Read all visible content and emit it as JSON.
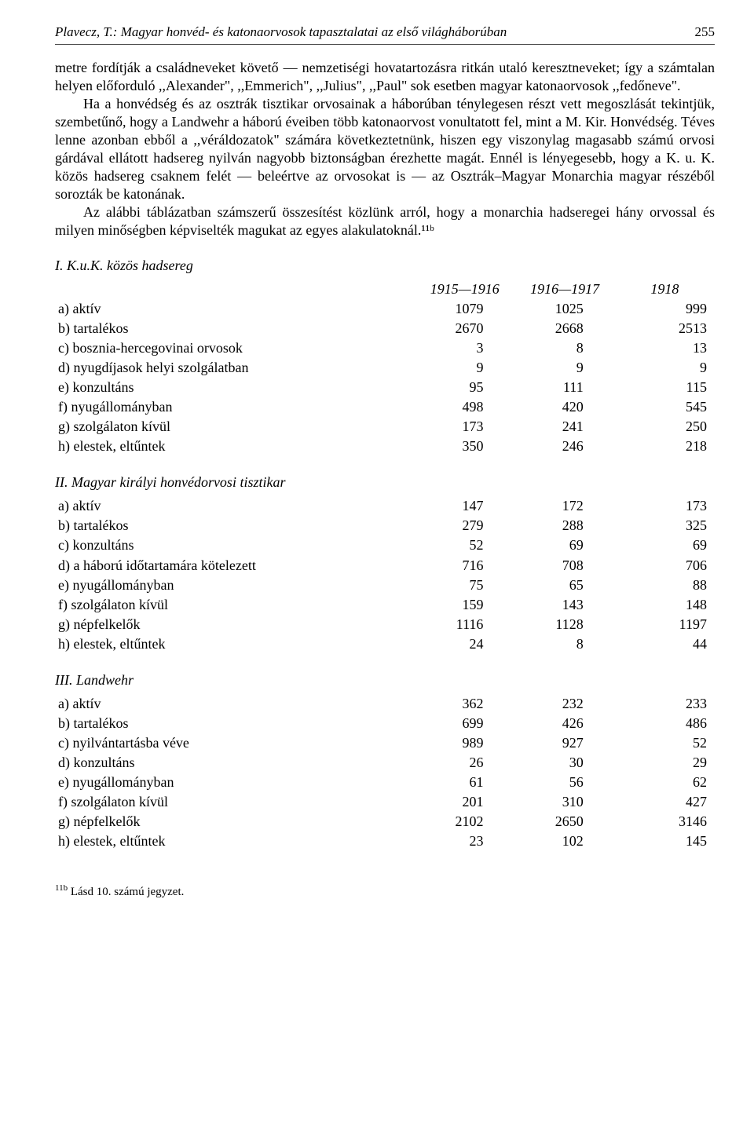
{
  "header": {
    "running_title": "Plavecz, T.: Magyar honvéd- és katonaorvosok tapasztalatai az első világháborúban",
    "page_number": "255"
  },
  "paragraphs": {
    "p1": "metre fordítják a családneveket követő — nemzetiségi hovatartozásra ritkán utaló keresztneveket; így a számtalan helyen előforduló ,,Alexander\", ,,Emmerich\", ,,Julius\", ,,Paul\" sok esetben magyar katonaorvosok ,,fedőneve\".",
    "p2": "Ha a honvédség és az osztrák tisztikar orvosainak a háborúban ténylegesen részt vett megoszlását tekintjük, szembetűnő, hogy a Landwehr a háború éveiben több katonaorvost vonultatott fel, mint a M. Kir. Honvédség. Téves lenne azonban ebből a ,,véráldozatok\" számára következtetnünk, hiszen egy viszonylag magasabb számú orvosi gárdával ellátott hadsereg nyilván nagyobb biztonságban érezhette magát. Ennél is lényegesebb, hogy a K. u. K. közös hadsereg csaknem felét — beleértve az orvosokat is — az Osztrák–Magyar Monarchia magyar részéből sorozták be katonának.",
    "p3": "Az alábbi táblázatban számszerű összesítést közlünk arról, hogy a monarchia hadseregei hány orvossal és milyen minőségben képviselték magukat az egyes alakulatoknál.¹¹ᵇ"
  },
  "tables": {
    "periods": {
      "c1": "1915—1916",
      "c2": "1916—1917",
      "c3": "1918"
    },
    "section1": {
      "title": "I.  K.u.K.  közös hadsereg",
      "rows": [
        {
          "label": "a) aktív",
          "c1": "1079",
          "c2": "1025",
          "c3": "999"
        },
        {
          "label": "b) tartalékos",
          "c1": "2670",
          "c2": "2668",
          "c3": "2513"
        },
        {
          "label": "c) bosznia-hercegovinai orvosok",
          "c1": "3",
          "c2": "8",
          "c3": "13"
        },
        {
          "label": "d) nyugdíjasok helyi szolgálatban",
          "c1": "9",
          "c2": "9",
          "c3": "9"
        },
        {
          "label": "e) konzultáns",
          "c1": "95",
          "c2": "111",
          "c3": "115"
        },
        {
          "label": "f) nyugállományban",
          "c1": "498",
          "c2": "420",
          "c3": "545"
        },
        {
          "label": "g) szolgálaton kívül",
          "c1": "173",
          "c2": "241",
          "c3": "250"
        },
        {
          "label": "h) elestek, eltűntek",
          "c1": "350",
          "c2": "246",
          "c3": "218"
        }
      ]
    },
    "section2": {
      "title": "II.  Magyar királyi honvédorvosi tisztikar",
      "rows": [
        {
          "label": "a) aktív",
          "c1": "147",
          "c2": "172",
          "c3": "173"
        },
        {
          "label": "b) tartalékos",
          "c1": "279",
          "c2": "288",
          "c3": "325"
        },
        {
          "label": "c) konzultáns",
          "c1": "52",
          "c2": "69",
          "c3": "69"
        },
        {
          "label": "d) a háború időtartamára kötelezett",
          "c1": "716",
          "c2": "708",
          "c3": "706"
        },
        {
          "label": "e) nyugállományban",
          "c1": "75",
          "c2": "65",
          "c3": "88"
        },
        {
          "label": "f) szolgálaton kívül",
          "c1": "159",
          "c2": "143",
          "c3": "148"
        },
        {
          "label": "g) népfelkelők",
          "c1": "1116",
          "c2": "1128",
          "c3": "1197"
        },
        {
          "label": "h) elestek, eltűntek",
          "c1": "24",
          "c2": "8",
          "c3": "44"
        }
      ]
    },
    "section3": {
      "title": "III.  Landwehr",
      "rows": [
        {
          "label": "a) aktív",
          "c1": "362",
          "c2": "232",
          "c3": "233"
        },
        {
          "label": "b) tartalékos",
          "c1": "699",
          "c2": "426",
          "c3": "486"
        },
        {
          "label": "c) nyilvántartásba véve",
          "c1": "989",
          "c2": "927",
          "c3": "52"
        },
        {
          "label": "d) konzultáns",
          "c1": "26",
          "c2": "30",
          "c3": "29"
        },
        {
          "label": "e) nyugállományban",
          "c1": "61",
          "c2": "56",
          "c3": "62"
        },
        {
          "label": "f) szolgálaton kívül",
          "c1": "201",
          "c2": "310",
          "c3": "427"
        },
        {
          "label": "g) népfelkelők",
          "c1": "2102",
          "c2": "2650",
          "c3": "3146"
        },
        {
          "label": "h) elestek, eltűntek",
          "c1": "23",
          "c2": "102",
          "c3": "145"
        }
      ]
    }
  },
  "footnote": {
    "marker": "11b",
    "text": "Lásd 10. számú jegyzet."
  }
}
